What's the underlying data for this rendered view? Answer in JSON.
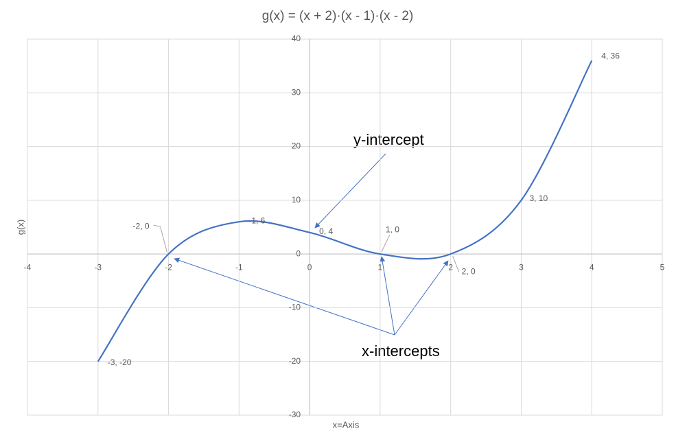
{
  "chart_data": {
    "type": "line",
    "title": "g(x) = (x + 2)·(x - 1)·(x - 2)",
    "xlabel": "x=Axis",
    "ylabel": "g(x)",
    "x": [
      -3,
      -2,
      -1,
      0,
      1,
      2,
      3,
      4
    ],
    "values": [
      -20,
      0,
      6,
      4,
      0,
      0,
      10,
      36
    ],
    "value_labels": [
      "-3, -20",
      "-2, 0",
      "-1, 6",
      "0, 4",
      "1, 0",
      "2, 0",
      "3, 10",
      "4, 36"
    ],
    "color": "#4472c4",
    "xlim": [
      -4,
      5
    ],
    "xticks": [
      -4,
      -3,
      -2,
      -1,
      0,
      1,
      2,
      3,
      4,
      5
    ],
    "ylim": [
      -30,
      40
    ],
    "yticks": [
      -30,
      -20,
      -10,
      0,
      10,
      20,
      30,
      40
    ],
    "grid": true,
    "smooth": true,
    "annotations": [
      "y-intercept",
      "x-intercepts"
    ]
  }
}
